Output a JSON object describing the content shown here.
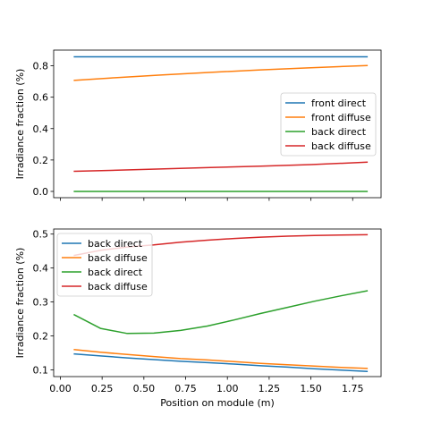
{
  "chart_data": [
    {
      "type": "line",
      "title": "",
      "xlabel": "",
      "ylabel": "Irradiance fraction (%)",
      "xlim": [
        -0.04,
        1.92
      ],
      "ylim": [
        -0.04,
        0.9
      ],
      "xticks": [
        0.0,
        0.25,
        0.5,
        0.75,
        1.0,
        1.25,
        1.5,
        1.75
      ],
      "xtick_labels_visible": false,
      "yticks": [
        0.0,
        0.2,
        0.4,
        0.6,
        0.8
      ],
      "ytick_labels": [
        "0.0",
        "0.2",
        "0.4",
        "0.6",
        "0.8"
      ],
      "grid": false,
      "legend": "center-right",
      "series": [
        {
          "name": "front direct",
          "color": "#1f77b4",
          "x": [
            0.08,
            0.3,
            0.6,
            0.9,
            1.2,
            1.5,
            1.84
          ],
          "y": [
            0.857,
            0.857,
            0.857,
            0.857,
            0.857,
            0.857,
            0.857
          ]
        },
        {
          "name": "front diffuse",
          "color": "#ff7f0e",
          "x": [
            0.08,
            0.3,
            0.6,
            0.9,
            1.2,
            1.5,
            1.84
          ],
          "y": [
            0.707,
            0.722,
            0.741,
            0.758,
            0.774,
            0.788,
            0.802
          ]
        },
        {
          "name": "back direct",
          "color": "#2ca02c",
          "x": [
            0.08,
            0.3,
            0.6,
            0.9,
            1.2,
            1.5,
            1.84
          ],
          "y": [
            0.0,
            0.0,
            0.0,
            0.0,
            0.0,
            0.0,
            0.0
          ]
        },
        {
          "name": "back diffuse",
          "color": "#d62728",
          "x": [
            0.08,
            0.3,
            0.6,
            0.9,
            1.2,
            1.5,
            1.84
          ],
          "y": [
            0.128,
            0.134,
            0.143,
            0.152,
            0.161,
            0.171,
            0.186
          ]
        }
      ]
    },
    {
      "type": "line",
      "title": "",
      "xlabel": "Position on module (m)",
      "ylabel": "Irradiance fraction (%)",
      "xlim": [
        -0.04,
        1.92
      ],
      "ylim": [
        0.08,
        0.515
      ],
      "xticks": [
        0.0,
        0.25,
        0.5,
        0.75,
        1.0,
        1.25,
        1.5,
        1.75
      ],
      "xtick_labels": [
        "0.00",
        "0.25",
        "0.50",
        "0.75",
        "1.00",
        "1.25",
        "1.50",
        "1.75"
      ],
      "yticks": [
        0.1,
        0.2,
        0.3,
        0.4,
        0.5
      ],
      "ytick_labels": [
        "0.1",
        "0.2",
        "0.3",
        "0.4",
        "0.5"
      ],
      "grid": false,
      "legend": "upper-left",
      "series": [
        {
          "name": "back direct",
          "color": "#1f77b4",
          "x": [
            0.08,
            0.24,
            0.4,
            0.56,
            0.72,
            0.88,
            1.04,
            1.2,
            1.36,
            1.52,
            1.68,
            1.84
          ],
          "y": [
            0.147,
            0.141,
            0.135,
            0.13,
            0.125,
            0.121,
            0.117,
            0.112,
            0.108,
            0.103,
            0.099,
            0.095
          ]
        },
        {
          "name": "back diffuse",
          "color": "#ff7f0e",
          "x": [
            0.08,
            0.24,
            0.4,
            0.56,
            0.72,
            0.88,
            1.04,
            1.2,
            1.36,
            1.52,
            1.68,
            1.84
          ],
          "y": [
            0.16,
            0.152,
            0.145,
            0.139,
            0.133,
            0.129,
            0.124,
            0.119,
            0.115,
            0.111,
            0.107,
            0.104
          ]
        },
        {
          "name": "back direct",
          "color": "#2ca02c",
          "x": [
            0.08,
            0.24,
            0.4,
            0.56,
            0.72,
            0.88,
            1.04,
            1.2,
            1.36,
            1.52,
            1.68,
            1.84
          ],
          "y": [
            0.263,
            0.222,
            0.207,
            0.208,
            0.216,
            0.229,
            0.247,
            0.266,
            0.284,
            0.302,
            0.318,
            0.333
          ]
        },
        {
          "name": "back diffuse",
          "color": "#d62728",
          "x": [
            0.08,
            0.24,
            0.4,
            0.56,
            0.72,
            0.88,
            1.04,
            1.2,
            1.36,
            1.52,
            1.68,
            1.84
          ],
          "y": [
            0.437,
            0.452,
            0.462,
            0.468,
            0.476,
            0.482,
            0.487,
            0.491,
            0.494,
            0.496,
            0.497,
            0.498
          ]
        }
      ]
    }
  ]
}
